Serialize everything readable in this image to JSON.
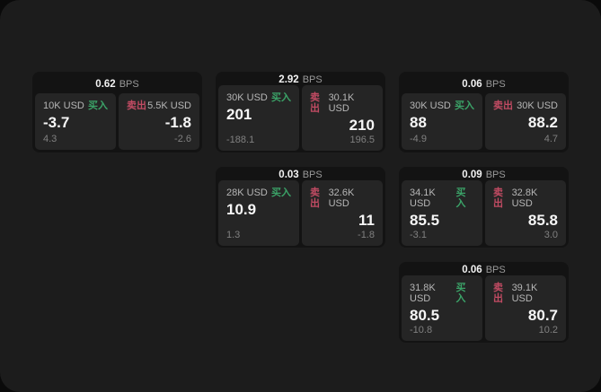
{
  "labels": {
    "bps_unit": "BPS",
    "buy": "买入",
    "sell": "卖出"
  },
  "colors": {
    "buy_green": "#3ba368",
    "sell_red": "#c14b63",
    "surface": "#1c1c1c",
    "card_background": "#131313",
    "panel_background": "#252525"
  },
  "cards": [
    {
      "bps": "0.62",
      "buy": {
        "amount": "10K USD",
        "price": "-3.7",
        "change": "4.3"
      },
      "sell": {
        "amount": "5.5K USD",
        "price": "-1.8",
        "change": "-2.6"
      }
    },
    {
      "bps": "2.92",
      "buy": {
        "amount": "30K USD",
        "price": "201",
        "change": "-188.1"
      },
      "sell": {
        "amount": "30.1K USD",
        "price": "210",
        "change": "196.5"
      }
    },
    {
      "bps": "0.06",
      "buy": {
        "amount": "30K USD",
        "price": "88",
        "change": "-4.9"
      },
      "sell": {
        "amount": "30K USD",
        "price": "88.2",
        "change": "4.7"
      }
    },
    {
      "bps": "0.03",
      "buy": {
        "amount": "28K USD",
        "price": "10.9",
        "change": "1.3"
      },
      "sell": {
        "amount": "32.6K USD",
        "price": "11",
        "change": "-1.8"
      }
    },
    {
      "bps": "0.09",
      "buy": {
        "amount": "34.1K USD",
        "price": "85.5",
        "change": "-3.1"
      },
      "sell": {
        "amount": "32.8K USD",
        "price": "85.8",
        "change": "3.0"
      }
    },
    {
      "bps": "0.06",
      "buy": {
        "amount": "31.8K USD",
        "price": "80.5",
        "change": "-10.8"
      },
      "sell": {
        "amount": "39.1K USD",
        "price": "80.7",
        "change": "10.2"
      }
    }
  ]
}
